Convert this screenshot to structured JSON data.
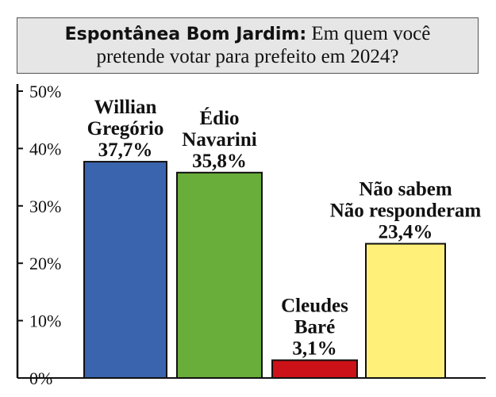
{
  "title": {
    "bold": "Espontânea Bom Jardim:",
    "line1_rest": " Em quem você",
    "line2": "pretende votar para prefeito em 2024?"
  },
  "chart_data": {
    "type": "bar",
    "title": "Espontânea Bom Jardim: Em quem você pretende votar para prefeito em 2024?",
    "categories": [
      "Willian Gregório",
      "Édio Navarini",
      "Cleudes Baré",
      "Não sabem Não responderam"
    ],
    "values": [
      37.7,
      35.8,
      3.1,
      23.4
    ],
    "value_labels": [
      "37,7%",
      "35,8%",
      "3,1%",
      "23,4%"
    ],
    "label_lines": [
      [
        "Willian",
        "Gregório",
        "37,7%"
      ],
      [
        "Édio",
        "Navarini",
        "35,8%"
      ],
      [
        "Cleudes",
        "Baré",
        "3,1%"
      ],
      [
        "Não sabem",
        "Não responderam",
        "23,4%"
      ]
    ],
    "colors": [
      "#3a64ad",
      "#69ad3a",
      "#cc1118",
      "#fff07a"
    ],
    "y_ticks": [
      0,
      10,
      20,
      30,
      40,
      50
    ],
    "y_tick_labels": [
      "0%",
      "10%",
      "20%",
      "30%",
      "40%",
      "50%"
    ],
    "ylim": [
      0,
      50
    ],
    "grid": false,
    "legend": "none"
  }
}
